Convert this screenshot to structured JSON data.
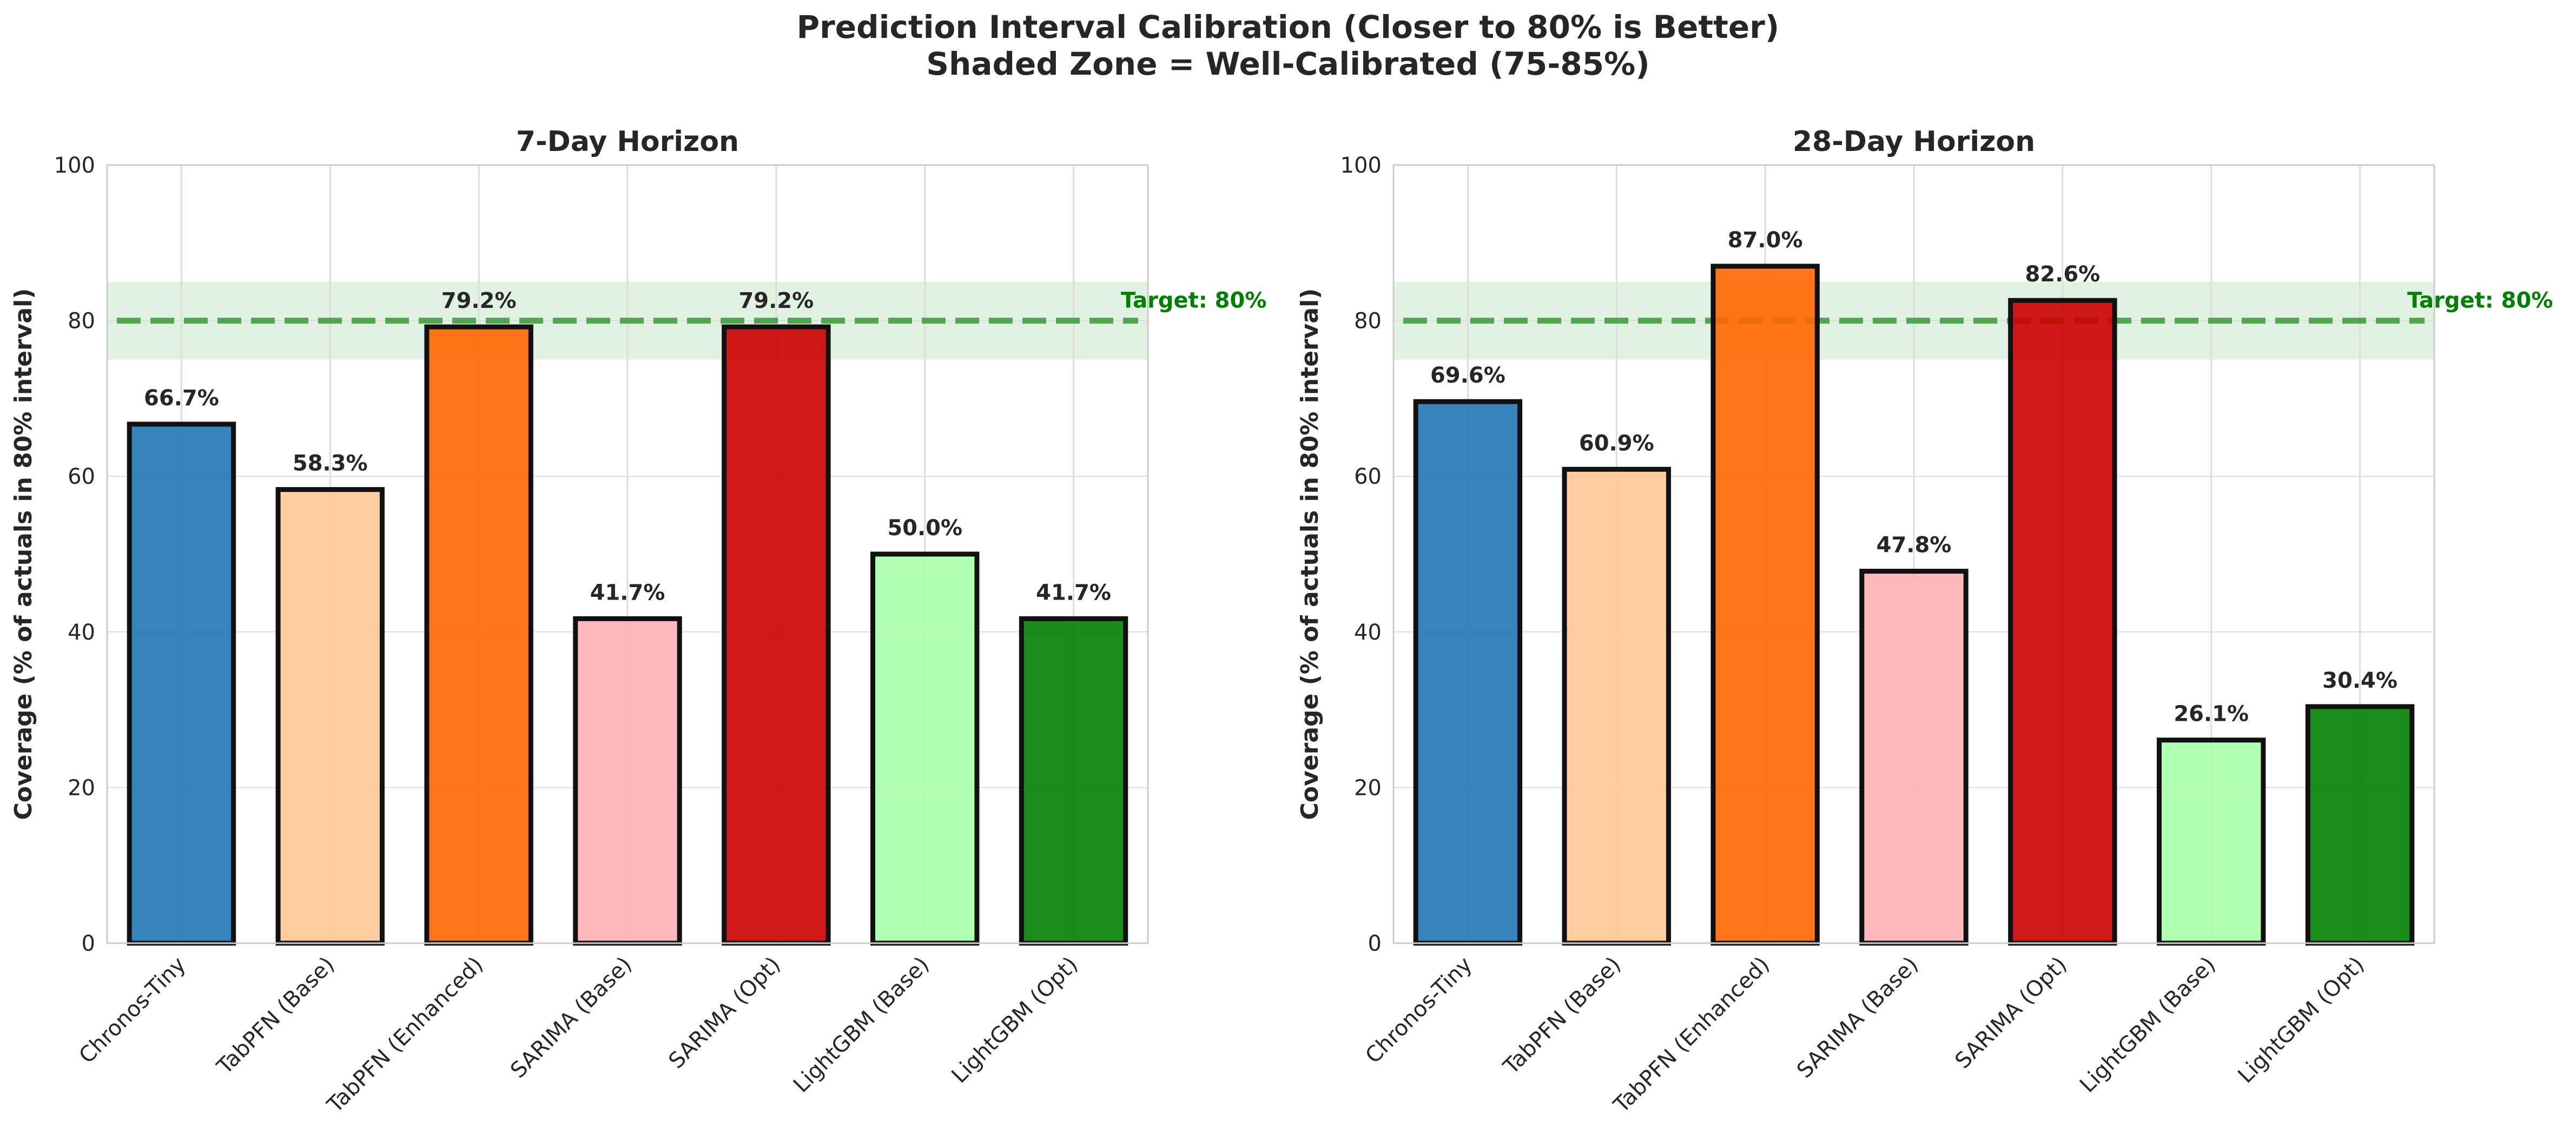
{
  "figure": {
    "title_line1": "Prediction Interval Calibration (Closer to 80% is Better)",
    "title_line2": "Shaded Zone = Well-Calibrated (75-85%)"
  },
  "colors": {
    "bars": [
      "#1f77b4",
      "#ffc896",
      "#ff6600",
      "#ffb0b4",
      "#cc0000",
      "#a8ffa8",
      "#008000"
    ],
    "target_line": "#3a9a3a",
    "target_label": "#008000",
    "band_fill": "#d8eed8",
    "bar_edge": "#111111",
    "grid": "#dddddd"
  },
  "chart_data": [
    {
      "type": "bar",
      "title": "7-Day Horizon",
      "xlabel": "",
      "ylabel": "Coverage (% of actuals in 80% interval)",
      "ylim": [
        0,
        100
      ],
      "yticks": [
        0,
        20,
        40,
        60,
        80,
        100
      ],
      "grid": true,
      "categories": [
        "Chronos-Tiny",
        "TabPFN (Base)",
        "TabPFN (Enhanced)",
        "SARIMA (Base)",
        "SARIMA (Opt)",
        "LightGBM (Base)",
        "LightGBM (Opt)"
      ],
      "values": [
        66.7,
        58.3,
        79.2,
        41.7,
        79.2,
        50.0,
        41.7
      ],
      "value_labels": [
        "66.7%",
        "58.3%",
        "79.2%",
        "41.7%",
        "79.2%",
        "50.0%",
        "41.7%"
      ],
      "target": 80,
      "target_label": "Target: 80%",
      "band": [
        75,
        85
      ]
    },
    {
      "type": "bar",
      "title": "28-Day Horizon",
      "xlabel": "",
      "ylabel": "Coverage (% of actuals in 80% interval)",
      "ylim": [
        0,
        100
      ],
      "yticks": [
        0,
        20,
        40,
        60,
        80,
        100
      ],
      "grid": true,
      "categories": [
        "Chronos-Tiny",
        "TabPFN (Base)",
        "TabPFN (Enhanced)",
        "SARIMA (Base)",
        "SARIMA (Opt)",
        "LightGBM (Base)",
        "LightGBM (Opt)"
      ],
      "values": [
        69.6,
        60.9,
        87.0,
        47.8,
        82.6,
        26.1,
        30.4
      ],
      "value_labels": [
        "69.6%",
        "60.9%",
        "87.0%",
        "47.8%",
        "82.6%",
        "26.1%",
        "30.4%"
      ],
      "target": 80,
      "target_label": "Target: 80%",
      "band": [
        75,
        85
      ]
    }
  ]
}
